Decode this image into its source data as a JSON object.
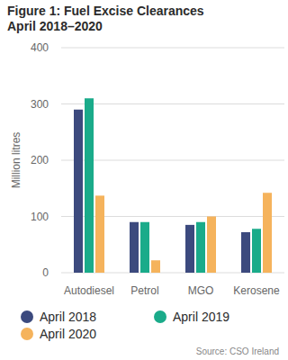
{
  "chart_data": {
    "type": "bar",
    "title": "Figure 1: Fuel Excise Clearances April 2018–2020",
    "y_label": "Million litres",
    "source": "Source: CSO Ireland",
    "categories": [
      "Autodiesel",
      "Petrol",
      "MGO",
      "Kerosene"
    ],
    "series": [
      {
        "name": "April 2018",
        "color": "#3c4a7e",
        "values": [
          290,
          90,
          85,
          72
        ]
      },
      {
        "name": "April 2019",
        "color": "#1aab8a",
        "values": [
          310,
          90,
          90,
          78
        ]
      },
      {
        "name": "April 2020",
        "color": "#f5b35c",
        "values": [
          137,
          22,
          100,
          142
        ]
      }
    ],
    "ylim": [
      0,
      400
    ],
    "yticks": [
      0,
      100,
      200,
      300,
      400
    ],
    "grid": true,
    "legend": "bottom"
  }
}
